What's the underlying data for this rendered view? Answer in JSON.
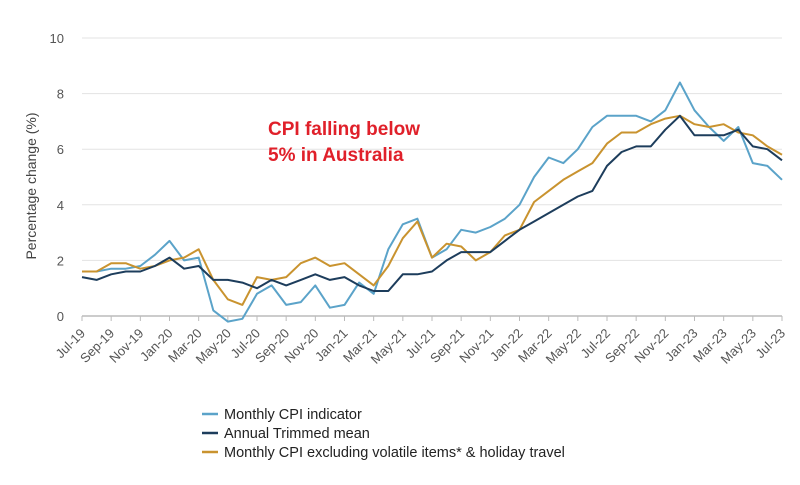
{
  "chart_data": {
    "type": "line",
    "ylabel": "Percentage change (%)",
    "ylim": [
      0,
      10
    ],
    "yticks": [
      0,
      2,
      4,
      6,
      8,
      10
    ],
    "grid": true,
    "legend_position": "bottom",
    "annotation": [
      "CPI falling below",
      "5% in Australia"
    ],
    "x": [
      "Jul-19",
      "Aug-19",
      "Sep-19",
      "Oct-19",
      "Nov-19",
      "Dec-19",
      "Jan-20",
      "Feb-20",
      "Mar-20",
      "Apr-20",
      "May-20",
      "Jun-20",
      "Jul-20",
      "Aug-20",
      "Sep-20",
      "Oct-20",
      "Nov-20",
      "Dec-20",
      "Jan-21",
      "Feb-21",
      "Mar-21",
      "Apr-21",
      "May-21",
      "Jun-21",
      "Jul-21",
      "Aug-21",
      "Sep-21",
      "Oct-21",
      "Nov-21",
      "Dec-21",
      "Jan-22",
      "Feb-22",
      "Mar-22",
      "Apr-22",
      "May-22",
      "Jun-22",
      "Jul-22",
      "Aug-22",
      "Sep-22",
      "Oct-22",
      "Nov-22",
      "Dec-22",
      "Jan-23",
      "Feb-23",
      "Mar-23",
      "Apr-23",
      "May-23",
      "Jun-23",
      "Jul-23"
    ],
    "xtick_labels": [
      "Jul-19",
      "Sep-19",
      "Nov-19",
      "Jan-20",
      "Mar-20",
      "May-20",
      "Jul-20",
      "Sep-20",
      "Nov-20",
      "Jan-21",
      "Mar-21",
      "May-21",
      "Jul-21",
      "Sep-21",
      "Nov-21",
      "Jan-22",
      "Mar-22",
      "May-22",
      "Jul-22",
      "Sep-22",
      "Nov-22",
      "Jan-23",
      "Mar-23",
      "May-23",
      "Jul-23"
    ],
    "series": [
      {
        "name": "Monthly CPI indicator",
        "color": "#5ba3c9",
        "values": [
          1.6,
          1.6,
          1.7,
          1.7,
          1.8,
          2.2,
          2.7,
          2.0,
          2.1,
          0.2,
          -0.2,
          -0.1,
          0.8,
          1.1,
          0.4,
          0.5,
          1.1,
          0.3,
          0.4,
          1.2,
          0.8,
          2.4,
          3.3,
          3.5,
          2.1,
          2.4,
          3.1,
          3.0,
          3.2,
          3.5,
          4.0,
          5.0,
          5.7,
          5.5,
          6.0,
          6.8,
          7.2,
          7.2,
          7.2,
          7.0,
          7.4,
          8.4,
          7.4,
          6.8,
          6.3,
          6.8,
          5.5,
          5.4,
          4.9
        ]
      },
      {
        "name": "Annual Trimmed mean",
        "color": "#1d3d5c",
        "values": [
          1.4,
          1.3,
          1.5,
          1.6,
          1.6,
          1.8,
          2.1,
          1.7,
          1.8,
          1.3,
          1.3,
          1.2,
          1.0,
          1.3,
          1.1,
          1.3,
          1.5,
          1.3,
          1.4,
          1.1,
          0.9,
          0.9,
          1.5,
          1.5,
          1.6,
          2.0,
          2.3,
          2.3,
          2.3,
          2.7,
          3.1,
          3.4,
          3.7,
          4.0,
          4.3,
          4.5,
          5.4,
          5.9,
          6.1,
          6.1,
          6.7,
          7.2,
          6.5,
          6.5,
          6.5,
          6.7,
          6.1,
          6.0,
          5.6
        ]
      },
      {
        "name": "Monthly CPI excluding volatile items* & holiday travel",
        "color": "#c9932f",
        "values": [
          1.6,
          1.6,
          1.9,
          1.9,
          1.7,
          1.8,
          2.0,
          2.1,
          2.4,
          1.3,
          0.6,
          0.4,
          1.4,
          1.3,
          1.4,
          1.9,
          2.1,
          1.8,
          1.9,
          1.5,
          1.1,
          1.8,
          2.8,
          3.4,
          2.1,
          2.6,
          2.5,
          2.0,
          2.3,
          2.9,
          3.1,
          4.1,
          4.5,
          4.9,
          5.2,
          5.5,
          6.2,
          6.6,
          6.6,
          6.9,
          7.1,
          7.2,
          6.9,
          6.8,
          6.9,
          6.6,
          6.5,
          6.1,
          5.8
        ]
      }
    ]
  }
}
